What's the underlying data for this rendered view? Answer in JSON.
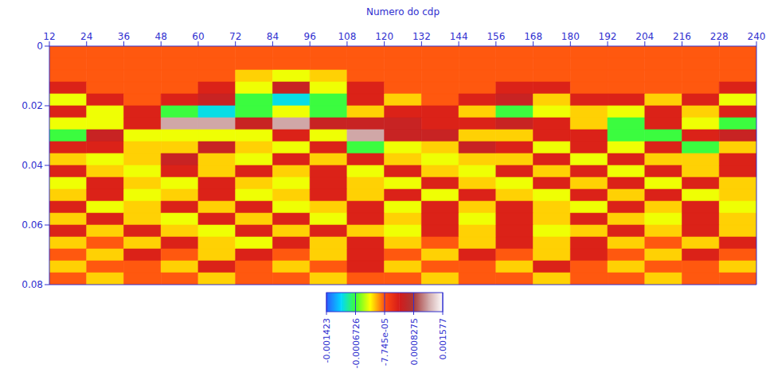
{
  "chart_data": {
    "type": "heatmap",
    "x_label": "Numero do cdp",
    "xlim": [
      12,
      240
    ],
    "xticks": [
      12,
      24,
      36,
      48,
      60,
      72,
      84,
      96,
      108,
      120,
      132,
      144,
      156,
      168,
      180,
      192,
      204,
      216,
      228,
      240
    ],
    "ylim": [
      0,
      0.08
    ],
    "yticks": [
      0,
      0.02,
      0.04,
      0.06,
      0.08
    ],
    "x_bins": [
      12,
      24,
      36,
      48,
      60,
      72,
      84,
      96,
      108,
      120,
      132,
      144,
      156,
      168,
      180,
      192,
      204,
      216,
      228,
      240
    ],
    "y_bins": [
      0,
      0.004,
      0.008,
      0.012,
      0.016,
      0.02,
      0.024,
      0.028,
      0.032,
      0.036,
      0.04,
      0.044,
      0.048,
      0.052,
      0.056,
      0.06,
      0.064,
      0.068,
      0.072,
      0.076,
      0.08
    ],
    "cells": [
      [
        -0.0001,
        -0.0001,
        -0.0001,
        -0.0001,
        -0.0001,
        -0.0001,
        -0.0001,
        -0.0001,
        -0.0001,
        -0.0001,
        -0.0001,
        -0.0001,
        -0.0001,
        -0.0001,
        -0.0001,
        -0.0001,
        -0.0001,
        -0.0001,
        -0.0001
      ],
      [
        -0.0001,
        -0.0001,
        -0.0001,
        -0.0001,
        -0.0001,
        -0.0001,
        -0.0001,
        -0.0001,
        -0.0001,
        -0.0001,
        -0.0001,
        -0.0001,
        -0.0001,
        -0.0001,
        -0.0001,
        -0.0001,
        -0.0001,
        -0.0001,
        -0.0001
      ],
      [
        -0.0001,
        -0.0001,
        -0.0001,
        -0.0001,
        -0.0001,
        -0.0003,
        -0.0004,
        -0.0003,
        -0.0001,
        -0.0001,
        -0.0001,
        -0.0001,
        -0.0001,
        -0.0001,
        -0.0001,
        -0.0001,
        -0.0001,
        -0.0001,
        -0.0001
      ],
      [
        0.0003,
        -0.0001,
        -0.0001,
        -0.0001,
        0.0003,
        -0.0004,
        0.0005,
        -0.0004,
        0.0003,
        -0.0001,
        -0.0001,
        -0.0001,
        0.0003,
        0.0003,
        -0.0001,
        -0.0001,
        -0.0001,
        -0.0001,
        0.0003
      ],
      [
        -0.0004,
        0.0003,
        -0.0001,
        0.0003,
        0.0005,
        -0.0007,
        -0.001,
        -0.0007,
        0.0003,
        -0.0003,
        -0.0001,
        0.0003,
        0.0005,
        -0.0003,
        0.0003,
        0.0003,
        -0.0003,
        0.0003,
        -0.0004
      ],
      [
        0.0003,
        -0.0004,
        0.0003,
        -0.0007,
        -0.001,
        -0.0007,
        -0.0004,
        -0.0007,
        -0.0003,
        0.0003,
        0.0003,
        -0.0003,
        -0.0007,
        -0.0004,
        -0.0003,
        -0.0004,
        0.0003,
        -0.0003,
        0.0003
      ],
      [
        -0.0004,
        -0.0004,
        0.0003,
        0.0012,
        0.0012,
        0.0005,
        0.0012,
        0.0005,
        0.0005,
        0.0005,
        0.0003,
        0.0003,
        0.0005,
        0.0003,
        -0.0003,
        -0.0007,
        0.0003,
        -0.0004,
        -0.0007
      ],
      [
        -0.0007,
        0.0005,
        -0.0004,
        -0.0004,
        -0.0004,
        -0.0004,
        0.0003,
        -0.0004,
        0.0012,
        0.0005,
        0.0005,
        -0.0003,
        -0.0003,
        0.0003,
        0.0003,
        -0.0007,
        -0.0007,
        0.0003,
        0.0005
      ],
      [
        0.0003,
        0.0003,
        -0.0003,
        -0.0003,
        0.0005,
        -0.0003,
        -0.0004,
        0.0003,
        -0.0007,
        -0.0004,
        -0.0003,
        0.0005,
        0.0003,
        -0.0004,
        0.0003,
        -0.0004,
        0.0003,
        -0.0007,
        -0.0003
      ],
      [
        -0.0003,
        -0.0004,
        -0.0003,
        0.0005,
        -0.0003,
        -0.0004,
        0.0003,
        -0.0003,
        0.0003,
        -0.0003,
        -0.0004,
        -0.0003,
        -0.0003,
        0.0003,
        -0.0004,
        0.0003,
        -0.0003,
        -0.0003,
        0.0003
      ],
      [
        0.0003,
        -0.0003,
        -0.0004,
        0.0003,
        -0.0003,
        0.0003,
        -0.0003,
        0.0003,
        -0.0004,
        0.0003,
        -0.0003,
        -0.0004,
        0.0003,
        -0.0003,
        0.0003,
        -0.0004,
        0.0003,
        -0.0003,
        0.0003
      ],
      [
        -0.0004,
        0.0003,
        -0.0003,
        -0.0004,
        0.0003,
        -0.0003,
        -0.0004,
        0.0003,
        -0.0003,
        -0.0004,
        0.0003,
        -0.0003,
        -0.0004,
        0.0003,
        -0.0003,
        0.0003,
        -0.0004,
        0.0003,
        -0.0003
      ],
      [
        -0.0003,
        0.0003,
        -0.0004,
        -0.0003,
        0.0003,
        -0.0004,
        -0.0003,
        0.0003,
        -0.0003,
        0.0003,
        -0.0004,
        0.0003,
        -0.0003,
        -0.0004,
        0.0003,
        -0.0003,
        0.0003,
        -0.0004,
        -0.0003
      ],
      [
        0.0003,
        -0.0004,
        -0.0003,
        0.0003,
        -0.0003,
        0.0003,
        -0.0004,
        -0.0003,
        0.0003,
        -0.0004,
        0.0003,
        -0.0003,
        0.0003,
        -0.0003,
        -0.0004,
        0.0003,
        -0.0003,
        0.0003,
        -0.0004
      ],
      [
        -0.0003,
        0.0003,
        -0.0003,
        -0.0004,
        0.0003,
        -0.0003,
        0.0003,
        -0.0004,
        0.0003,
        -0.0003,
        0.0003,
        -0.0004,
        0.0003,
        -0.0003,
        0.0003,
        -0.0003,
        -0.0004,
        0.0003,
        -0.0003
      ],
      [
        0.0003,
        -0.0003,
        0.0003,
        -0.0003,
        -0.0004,
        0.0003,
        -0.0003,
        0.0003,
        -0.0003,
        -0.0004,
        0.0003,
        -0.0003,
        0.0003,
        -0.0004,
        -0.0003,
        0.0003,
        -0.0003,
        0.0003,
        -0.0003
      ],
      [
        -0.0003,
        -0.0001,
        -0.0003,
        0.0003,
        -0.0003,
        -0.0004,
        0.0003,
        -0.0003,
        0.0003,
        -0.0003,
        -0.0001,
        -0.0003,
        0.0003,
        -0.0003,
        0.0003,
        -0.0003,
        -0.0001,
        -0.0003,
        0.0003
      ],
      [
        -0.0001,
        -0.0003,
        0.0003,
        -0.0001,
        -0.0003,
        0.0003,
        -0.0001,
        -0.0003,
        0.0003,
        -0.0001,
        -0.0003,
        0.0003,
        -0.0001,
        -0.0003,
        0.0003,
        -0.0001,
        -0.0003,
        0.0003,
        -0.0001
      ],
      [
        -0.0003,
        -0.0001,
        -0.0001,
        -0.0003,
        0.0003,
        -0.0001,
        -0.0003,
        -0.0001,
        0.0003,
        -0.0003,
        -0.0001,
        -0.0001,
        -0.0003,
        0.0003,
        -0.0001,
        -0.0003,
        -0.0001,
        -0.0001,
        -0.0003
      ],
      [
        -0.0001,
        -0.0003,
        -0.0001,
        -0.0001,
        -0.0003,
        -0.0001,
        -0.0001,
        -0.0003,
        -0.0001,
        -0.0001,
        -0.0003,
        -0.0001,
        -0.0001,
        -0.0003,
        -0.0001,
        -0.0001,
        -0.0003,
        -0.0001,
        -0.0001
      ]
    ],
    "colorbar": {
      "range": [
        -0.001423,
        0.001577
      ],
      "ticks": [
        -0.001423,
        -0.0006726,
        {
          "value": -7.745e-05,
          "label": "-7.745e-05"
        },
        0.0008275,
        0.001577
      ]
    }
  }
}
